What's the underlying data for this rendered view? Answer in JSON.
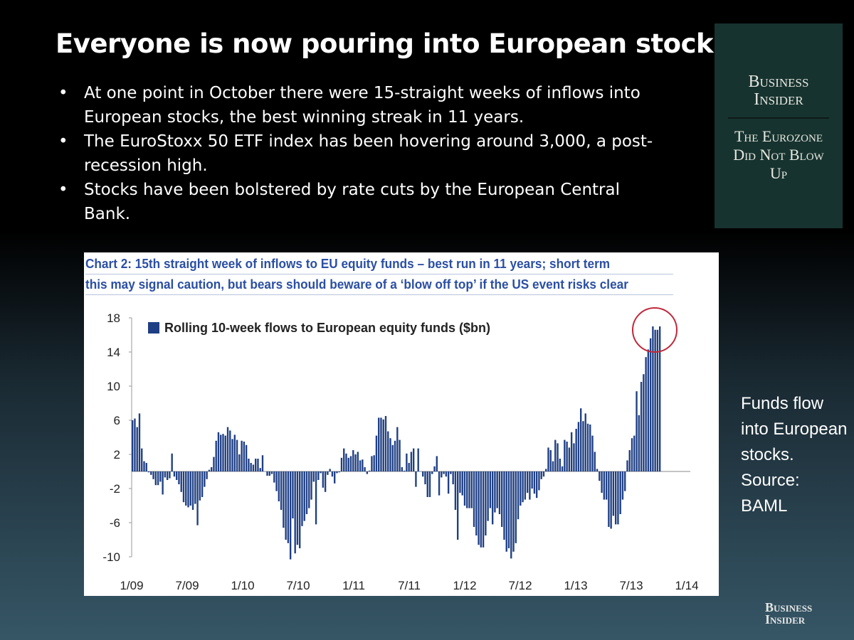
{
  "slide": {
    "title": "Everyone is now pouring into European stocks.",
    "bullets": [
      "At one point in October there were 15-straight weeks of inflows into European stocks, the best winning streak in 11 years.",
      "The EuroStoxx 50 ETF index has been hovering around 3,000, a post-recession high.",
      "Stocks have been bolstered by rate cuts by the European Central Bank."
    ],
    "caption": "Funds flow into European stocks. Source: BAML"
  },
  "badge": {
    "brand": "Business Insider",
    "series": "The Eurozone Did Not Blow Up",
    "background": "#17332f"
  },
  "footer_logo": {
    "line1": "Business",
    "line2": "Insider"
  },
  "chart_data": {
    "type": "bar",
    "title_lines": [
      "Chart 2: 15th straight week of inflows to EU equity funds – best run in 11 years; short term",
      "this may signal caution, but bears should beware of a ‘blow off top’ if the US event risks clear"
    ],
    "legend": "Rolling 10-week flows to European equity funds ($bn)",
    "legend_placement": "top-left",
    "bar_color": "#1f3f84",
    "highlight_circle_color": "#c0283a",
    "x_tick_labels": [
      "1/09",
      "7/09",
      "1/10",
      "7/10",
      "1/11",
      "7/11",
      "1/12",
      "7/12",
      "1/13",
      "7/13",
      "1/14"
    ],
    "y_tick_labels": [
      "18",
      "14",
      "10",
      "6",
      "2",
      "-2",
      "-6",
      "-10"
    ],
    "ylim": [
      -10,
      18
    ],
    "grid": false,
    "series": [
      {
        "name": "Rolling 10-week flows to European equity funds ($bn)",
        "values": [
          6,
          6.2,
          5.2,
          6.8,
          2.7,
          1.2,
          1.0,
          -0.1,
          -0.4,
          -0.9,
          -1.6,
          -1.6,
          -1.2,
          -2.7,
          -0.7,
          -1,
          -0.8,
          2.1,
          -0.6,
          -1,
          -1.5,
          -2.4,
          -3.6,
          -4,
          -4.2,
          -4,
          -4.5,
          -3.8,
          -6.3,
          -3.4,
          -3,
          -1.8,
          -0.9,
          0.2,
          0.5,
          1.7,
          3.6,
          4.6,
          4.3,
          4.4,
          4.2,
          5.2,
          4.8,
          3.8,
          4.3,
          3.7,
          2,
          3.6,
          3.5,
          3.1,
          1.5,
          1,
          0.8,
          1.5,
          1.5,
          0.4,
          1.9,
          0,
          -0.5,
          -0.5,
          -0.3,
          -1.3,
          -2.3,
          -3.5,
          -4.5,
          -6.6,
          -8,
          -8.4,
          -10.3,
          -5.5,
          -9.6,
          -8.6,
          -9,
          -6.4,
          -5.8,
          -5,
          -4.3,
          -3.3,
          -1.2,
          -6.2,
          -1,
          -0.2,
          -1.9,
          -2.4,
          -0.4,
          0.3,
          -0.6,
          -1.4,
          -0.2,
          -0.1,
          1.6,
          2.7,
          2.1,
          1.6,
          1.8,
          2.5,
          2,
          2.3,
          1.3,
          1.4,
          0.5,
          -0.3,
          0.1,
          1.8,
          1.9,
          4.2,
          6.3,
          6.3,
          6.1,
          6.5,
          4.7,
          3.9,
          3.1,
          3.6,
          5.2,
          3.7,
          0.5,
          0.1,
          2.1,
          1,
          2.3,
          2.7,
          -1.8,
          2.7,
          0,
          -0.6,
          -1.5,
          -3,
          -3,
          -0.3,
          0.6,
          1.8,
          -2.8,
          -0.7,
          -0.3,
          -0.6,
          -2.6,
          -0.3,
          -1.5,
          -4.5,
          -8,
          -2.5,
          -2.8,
          -4,
          -4.3,
          -4.3,
          -4.3,
          -6.5,
          -7.5,
          -8.6,
          -8.9,
          -8.9,
          -7.5,
          -5.8,
          -4.3,
          -6.2,
          -4.8,
          -4.3,
          -5,
          -6.5,
          -8,
          -9.4,
          -9,
          -10.2,
          -9.4,
          -8.4,
          -5.6,
          -4,
          -3.6,
          -3.3,
          -2.5,
          -3.3,
          -2,
          -2.6,
          -3.1,
          -2.2,
          -0.9,
          -0.6,
          0.3,
          2.8,
          2.5,
          1.2,
          3.7,
          3.3,
          1.5,
          0.6,
          3.7,
          3.5,
          2.8,
          4.6,
          3.3,
          5,
          5.8,
          7.4,
          5.9,
          6.8,
          5.6,
          5.5,
          4.2,
          2.3,
          0.3,
          -1.1,
          -2.5,
          -3.3,
          -3.3,
          -6.5,
          -6.7,
          -5.2,
          -6.2,
          -6.2,
          -5,
          -3.3,
          -2.3,
          1.3,
          2.5,
          3.9,
          4.2,
          9.4,
          6.6,
          10.5,
          11.4,
          13.4,
          14.3,
          15.6,
          17,
          16.6,
          16.6,
          17
        ]
      }
    ]
  }
}
